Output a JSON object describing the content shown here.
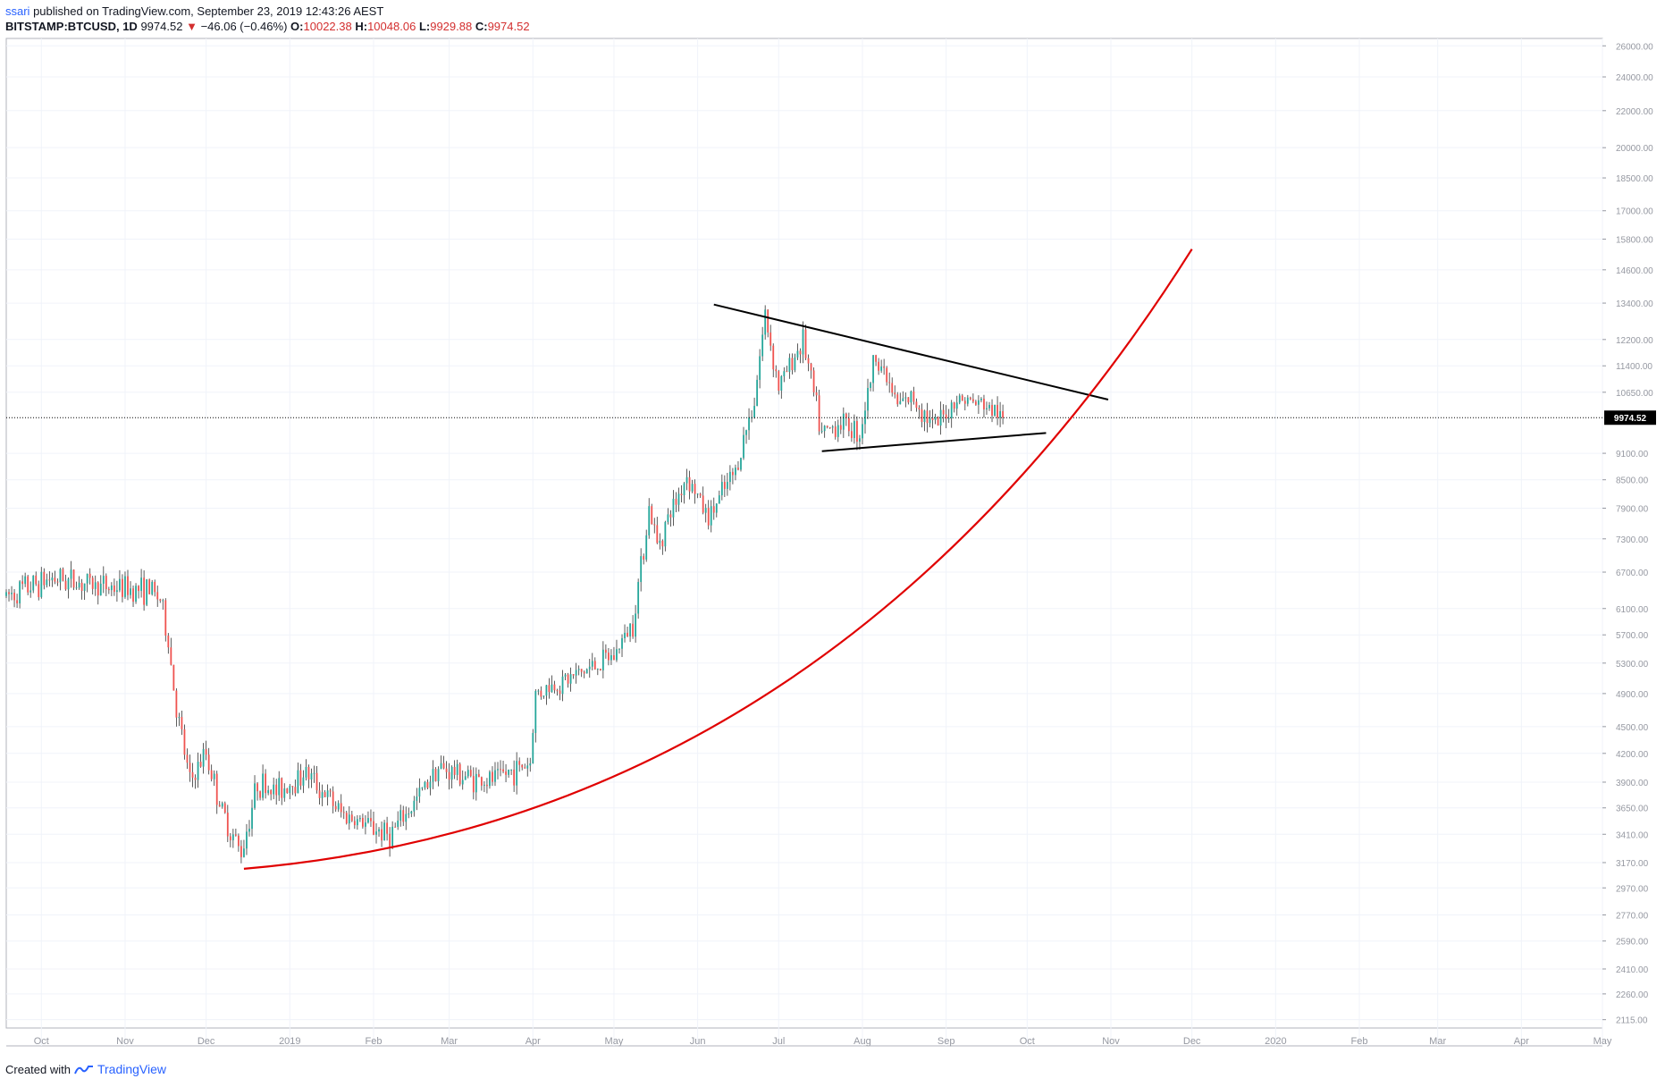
{
  "header": {
    "user": "ssari",
    "published": "published on TradingView.com, September 23, 2019 12:43:26 AEST",
    "symbol": "BITSTAMP:BTCUSD, 1D",
    "last": "9974.52",
    "change": "−46.06 (−0.46%)",
    "o_label": "O:",
    "o_value": "10022.38",
    "h_label": "H:",
    "h_value": "10048.06",
    "l_label": "L:",
    "l_value": "9929.88",
    "c_label": "C:",
    "c_value": "9974.52"
  },
  "footer": {
    "created": "Created with",
    "brand": "TradingView"
  },
  "colors": {
    "up": "#26a69a",
    "down": "#ef5350",
    "curve": "#e00000",
    "trend": "#000000"
  },
  "chart_data": {
    "type": "candlestick",
    "y_scale": "log",
    "ylim": [
      2070,
      26500
    ],
    "y_ticks": [
      2115,
      2260,
      2410,
      2590,
      2770,
      2970,
      3170,
      3410,
      3650,
      3900,
      4200,
      4500,
      4900,
      5300,
      5700,
      6100,
      6700,
      7300,
      7900,
      8500,
      9100,
      10650,
      11400,
      12200,
      13400,
      14600,
      15800,
      17000,
      18500,
      20000,
      22000,
      24000,
      26000
    ],
    "x_ticks": [
      "Oct",
      "Nov",
      "Dec",
      "2019",
      "Feb",
      "Mar",
      "Apr",
      "May",
      "Jun",
      "Jul",
      "Aug",
      "Sep",
      "Oct",
      "Nov",
      "Dec",
      "2020",
      "Feb",
      "Mar",
      "Apr",
      "May"
    ],
    "x_tick_dates": [
      "2018-10-01",
      "2018-11-01",
      "2018-12-01",
      "2019-01-01",
      "2019-02-01",
      "2019-03-01",
      "2019-04-01",
      "2019-05-01",
      "2019-06-01",
      "2019-07-01",
      "2019-08-01",
      "2019-09-01",
      "2019-10-01",
      "2019-11-01",
      "2019-12-01",
      "2020-01-01",
      "2020-02-01",
      "2020-03-01",
      "2020-04-01",
      "2020-05-01"
    ],
    "xlim": [
      "2018-09-18",
      "2020-05-01"
    ],
    "last_price": 9974.52,
    "last_price_label": "9974.52",
    "price_path": [
      [
        "2018-09-18",
        6300
      ],
      [
        "2018-10-05",
        6600
      ],
      [
        "2018-10-25",
        6450
      ],
      [
        "2018-11-10",
        6400
      ],
      [
        "2018-11-14",
        6250
      ],
      [
        "2018-11-17",
        5600
      ],
      [
        "2018-11-20",
        4700
      ],
      [
        "2018-11-25",
        3900
      ],
      [
        "2018-12-01",
        4200
      ],
      [
        "2018-12-07",
        3600
      ],
      [
        "2018-12-14",
        3250
      ],
      [
        "2018-12-20",
        3900
      ],
      [
        "2018-12-27",
        3800
      ],
      [
        "2019-01-07",
        4000
      ],
      [
        "2019-01-20",
        3600
      ],
      [
        "2019-02-07",
        3400
      ],
      [
        "2019-02-15",
        3650
      ],
      [
        "2019-02-24",
        4050
      ],
      [
        "2019-03-15",
        3900
      ],
      [
        "2019-03-31",
        4100
      ],
      [
        "2019-04-02",
        4900
      ],
      [
        "2019-04-15",
        5100
      ],
      [
        "2019-05-01",
        5400
      ],
      [
        "2019-05-08",
        5900
      ],
      [
        "2019-05-14",
        7900
      ],
      [
        "2019-05-17",
        7200
      ],
      [
        "2019-05-28",
        8600
      ],
      [
        "2019-06-05",
        7700
      ],
      [
        "2019-06-15",
        8700
      ],
      [
        "2019-06-22",
        10500
      ],
      [
        "2019-06-26",
        13000
      ],
      [
        "2019-07-01",
        10800
      ],
      [
        "2019-07-10",
        12200
      ],
      [
        "2019-07-17",
        9500
      ],
      [
        "2019-07-24",
        9900
      ],
      [
        "2019-07-31",
        9600
      ],
      [
        "2019-08-06",
        11800
      ],
      [
        "2019-08-14",
        10300
      ],
      [
        "2019-08-20",
        10500
      ],
      [
        "2019-08-28",
        9700
      ],
      [
        "2019-09-05",
        10500
      ],
      [
        "2019-09-15",
        10300
      ],
      [
        "2019-09-22",
        9974.52
      ]
    ],
    "trendline_upper": [
      [
        "2019-06-07",
        13350
      ],
      [
        "2019-10-31",
        10450
      ]
    ],
    "trendline_lower": [
      [
        "2019-07-17",
        9150
      ],
      [
        "2019-10-08",
        9590
      ]
    ],
    "curve": {
      "start": [
        "2018-12-15",
        3120
      ],
      "end": [
        "2019-12-01",
        15400
      ]
    }
  }
}
